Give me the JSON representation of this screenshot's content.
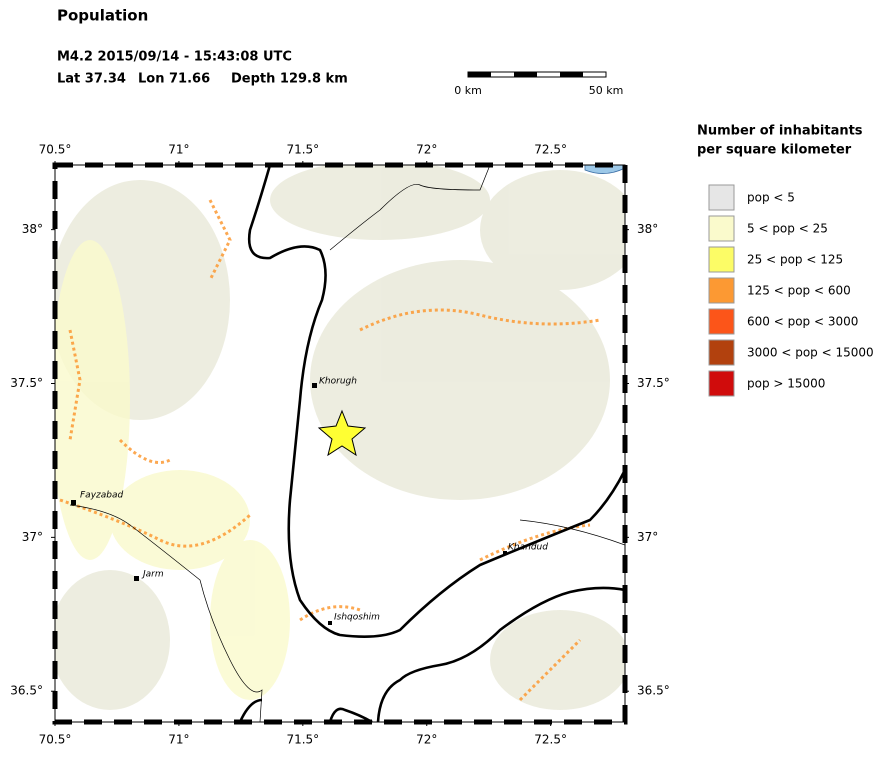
{
  "header": {
    "title": "Population",
    "event": "M4.2  2015/09/14 - 15:43:08 UTC",
    "lat": "Lat 37.34",
    "lon": "Lon  71.66",
    "depth": "Depth 129.8 km"
  },
  "scale_bar": {
    "start": "0 km",
    "end": "50 km"
  },
  "map": {
    "xlim": [
      70.5,
      72.8
    ],
    "ylim": [
      36.4,
      38.21
    ],
    "xticks": [
      {
        "value": 70.5,
        "label": "70.5°"
      },
      {
        "value": 71,
        "label": "71°"
      },
      {
        "value": 71.5,
        "label": "71.5°"
      },
      {
        "value": 72,
        "label": "72°"
      },
      {
        "value": 72.5,
        "label": "72.5°"
      }
    ],
    "yticks": [
      {
        "value": 36.5,
        "label": "36.5°"
      },
      {
        "value": 37,
        "label": "37°"
      },
      {
        "value": 37.5,
        "label": "37.5°"
      },
      {
        "value": 38,
        "label": "38°"
      }
    ],
    "places": [
      "Khorugh",
      "Fayzabad",
      "Jarm",
      "Ishqoshim",
      "Khandud"
    ]
  },
  "legend": {
    "title": [
      "Number of inhabitants",
      "per square kilometer"
    ],
    "items": [
      {
        "label": "pop < 5",
        "color": "#e6e6e6"
      },
      {
        "label": "5 < pop < 25",
        "color": "#fafacc"
      },
      {
        "label": "25 < pop < 125",
        "color": "#fcfc66"
      },
      {
        "label": "125 < pop < 600",
        "color": "#fc9933"
      },
      {
        "label": "600 < pop < 3000",
        "color": "#fc5519"
      },
      {
        "label": "3000 < pop < 15000",
        "color": "#b2410e"
      },
      {
        "label": "pop > 15000",
        "color": "#d00c0c"
      }
    ]
  }
}
